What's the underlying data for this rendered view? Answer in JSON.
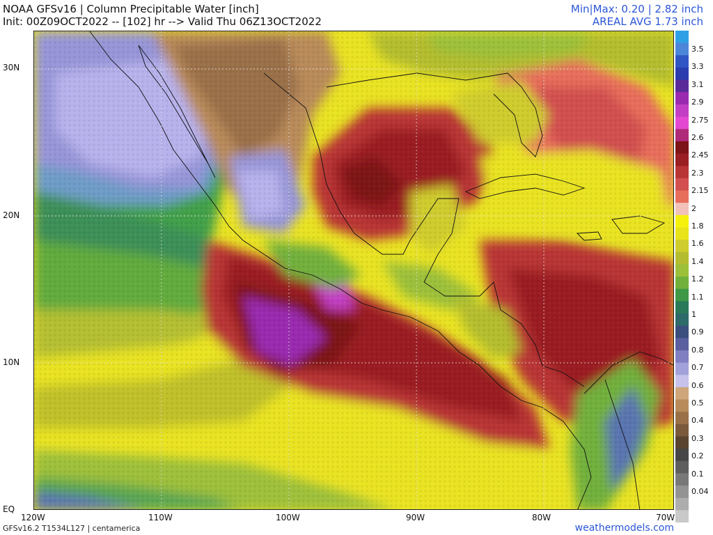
{
  "header": {
    "title": "NOAA GFSv16 | Column Precipitable Water [inch]",
    "init": "Init: 00Z09OCT2022 -- [102] hr --> Valid Thu 06Z13OCT2022",
    "minmax": "Min|Max: 0.20 | 2.82 inch",
    "areal": "AREAL AVG 1.73 inch"
  },
  "map": {
    "lat_labels": [
      "30N",
      "20N",
      "10N",
      "EQ"
    ],
    "lon_labels": [
      "120W",
      "110W",
      "100W",
      "90W",
      "80W",
      "70W"
    ],
    "extent": {
      "lon_min": -120,
      "lon_max": -70,
      "lat_min": 0,
      "lat_max": 32.5
    }
  },
  "colorbar": {
    "labels": [
      "3.5",
      "3.3",
      "3.1",
      "2.9",
      "2.75",
      "2.6",
      "2.45",
      "2.3",
      "2.15",
      "2",
      "1.8",
      "1.6",
      "1.4",
      "1.2",
      "1.1",
      "1",
      "0.9",
      "0.8",
      "0.7",
      "0.6",
      "0.5",
      "0.4",
      "0.3",
      "0.2",
      "0.1",
      "0.04"
    ],
    "colors": [
      "#2fa0e6",
      "#4b86d9",
      "#3056c4",
      "#2a3cae",
      "#5a2a9a",
      "#9a2ab0",
      "#c23fc4",
      "#e448d2",
      "#b02a7a",
      "#7d1418",
      "#9a1f22",
      "#b93434",
      "#d25050",
      "#e86e5c",
      "#f2c1b8",
      "#f6f20e",
      "#e9e41a",
      "#cfcc2e",
      "#b4bd2f",
      "#9cc03a",
      "#72b03c",
      "#3e9848",
      "#2a7a5a",
      "#2d6a6a",
      "#3a4f7e",
      "#5a5fa0",
      "#7f7fc2",
      "#a3a1d9",
      "#c6c2ec",
      "#cfa57a",
      "#b98b5a",
      "#9a7048",
      "#7a5a3a",
      "#5a4430",
      "#464646",
      "#5e5e5e",
      "#787878",
      "#939393",
      "#adadad",
      "#c9c9c9"
    ]
  },
  "footer": {
    "left": "GFSv16.2 T1534L127 | centamerica",
    "brand": "weathermodels.com"
  }
}
